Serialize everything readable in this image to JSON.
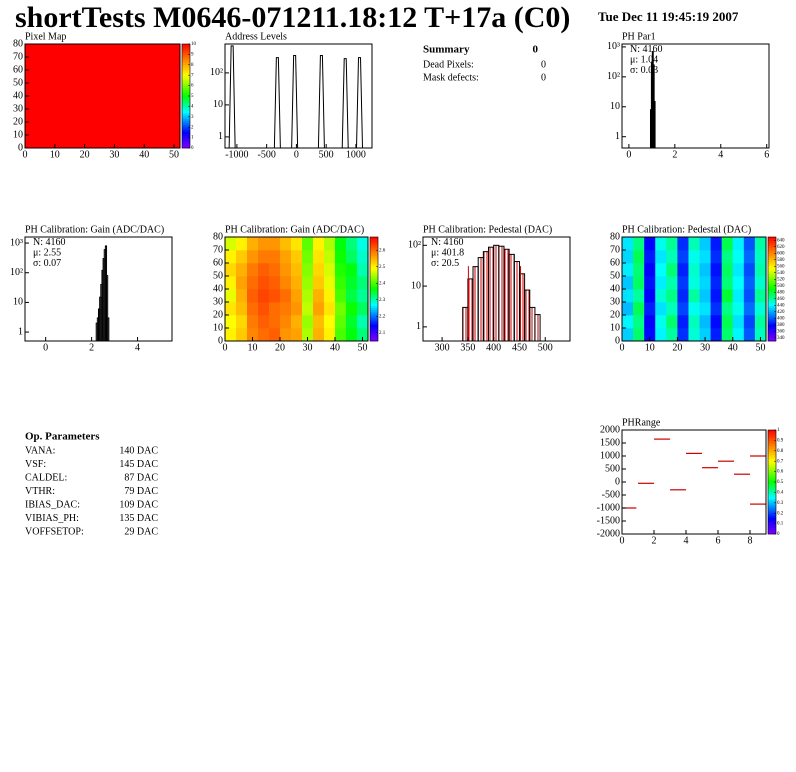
{
  "header": {
    "title": "shortTests M0646-071211.18:12 T+17a (C0)",
    "date": "Tue Dec 11 19:45:19 2007"
  },
  "summary": {
    "title": "Summary",
    "total": 0,
    "rows": [
      {
        "label": "Dead Pixels:",
        "value": 0
      },
      {
        "label": "Mask defects:",
        "value": 0
      }
    ]
  },
  "parameters": {
    "title": "Op. Parameters",
    "rows": [
      {
        "label": "VANA:",
        "value": "140 DAC"
      },
      {
        "label": "VSF:",
        "value": "145 DAC"
      },
      {
        "label": "CALDEL:",
        "value": "87 DAC"
      },
      {
        "label": "VTHR:",
        "value": "79 DAC"
      },
      {
        "label": "IBIAS_DAC:",
        "value": "109 DAC"
      },
      {
        "label": "VIBIAS_PH:",
        "value": "135 DAC"
      },
      {
        "label": "VOFFSETOP:",
        "value": "29 DAC"
      }
    ]
  },
  "chart_data": [
    {
      "type": "heatmap",
      "title": "Pixel Map",
      "xlim": [
        0,
        52
      ],
      "ylim": [
        0,
        80
      ],
      "xticks": [
        0,
        10,
        20,
        30,
        40,
        50
      ],
      "yticks": [
        0,
        10,
        20,
        30,
        40,
        50,
        60,
        70,
        80
      ],
      "z": [
        [
          10
        ]
      ],
      "zlim": [
        0,
        10
      ],
      "zticks": [
        0,
        1,
        2,
        3,
        4,
        5,
        6,
        7,
        8,
        9,
        10
      ]
    },
    {
      "type": "peaks",
      "title": "Address Levels",
      "x": [
        -1080,
        -320,
        -30,
        420,
        820,
        1060
      ],
      "values": [
        700,
        300,
        350,
        350,
        280,
        300
      ],
      "color": "#000000",
      "xlim": [
        -1200,
        1270
      ],
      "ylim": [
        0.45,
        800
      ],
      "log_y": true,
      "xticks": [
        -1000,
        -500,
        0,
        500,
        1000
      ],
      "yticks": [
        1,
        10,
        {
          "value": 100,
          "label": "10²"
        }
      ]
    },
    {
      "type": "histogram",
      "title": "PH Par1",
      "bins": [
        0.94,
        0.98,
        1.02,
        1.06,
        1.1,
        1.14
      ],
      "values": [
        8,
        300,
        700,
        250,
        15
      ],
      "xlim": [
        -0.3,
        6.1
      ],
      "ylim": [
        0.42,
        1250
      ],
      "log_y": true,
      "xticks": [
        0,
        2,
        4,
        6
      ],
      "yticks": [
        1,
        10,
        {
          "value": 100,
          "label": "10²"
        },
        {
          "value": 1000,
          "label": "10³"
        }
      ],
      "stats": [
        {
          "label": "N:",
          "value": 4160
        },
        {
          "label": "μ:",
          "value": 1.04
        },
        {
          "label": "σ:",
          "value": 0.03
        }
      ]
    },
    {
      "type": "histogram",
      "title": "PH Calibration: Gain (ADC/DAC)",
      "bins": [
        2.2,
        2.25,
        2.3,
        2.35,
        2.4,
        2.45,
        2.5,
        2.55,
        2.6,
        2.65,
        2.7,
        2.75
      ],
      "values": [
        2,
        3,
        6,
        15,
        40,
        120,
        300,
        600,
        800,
        80,
        3
      ],
      "xlim": [
        -0.9,
        5.5
      ],
      "ylim": [
        0.5,
        1600
      ],
      "log_y": true,
      "xticks": [
        0,
        2,
        4
      ],
      "yticks": [
        1,
        10,
        {
          "value": 100,
          "label": "10²"
        },
        {
          "value": 1000,
          "label": "10³"
        }
      ],
      "stats": [
        {
          "label": "N:",
          "value": 4160
        },
        {
          "label": "μ:",
          "value": 2.55
        },
        {
          "label": "σ:",
          "value": 0.07
        }
      ]
    },
    {
      "type": "heatmap",
      "title": "PH Calibration: Gain (ADC/DAC)",
      "xlim": [
        0,
        52
      ],
      "ylim": [
        0,
        80
      ],
      "xticks": [
        0,
        10,
        20,
        30,
        40,
        50
      ],
      "yticks": [
        0,
        10,
        20,
        30,
        40,
        50,
        60,
        70,
        80
      ],
      "zlim": [
        2.05,
        2.68
      ],
      "zticks": [
        2.1,
        2.2,
        2.3,
        2.4,
        2.5,
        2.6
      ],
      "z": [
        [
          2.5,
          2.53,
          2.58,
          2.6,
          2.61,
          2.57,
          2.56,
          2.45,
          2.55,
          2.5,
          2.4,
          2.36,
          2.32
        ],
        [
          2.49,
          2.52,
          2.59,
          2.61,
          2.6,
          2.58,
          2.55,
          2.44,
          2.54,
          2.49,
          2.41,
          2.35,
          2.3
        ],
        [
          2.51,
          2.54,
          2.6,
          2.62,
          2.6,
          2.59,
          2.57,
          2.46,
          2.56,
          2.51,
          2.42,
          2.37,
          2.33
        ],
        [
          2.48,
          2.55,
          2.61,
          2.63,
          2.62,
          2.6,
          2.56,
          2.45,
          2.55,
          2.5,
          2.4,
          2.34,
          2.31
        ],
        [
          2.5,
          2.56,
          2.6,
          2.62,
          2.61,
          2.58,
          2.55,
          2.44,
          2.53,
          2.48,
          2.39,
          2.35,
          2.32
        ],
        [
          2.52,
          2.55,
          2.59,
          2.61,
          2.6,
          2.57,
          2.54,
          2.43,
          2.52,
          2.47,
          2.38,
          2.36,
          2.3
        ],
        [
          2.5,
          2.53,
          2.57,
          2.59,
          2.59,
          2.56,
          2.53,
          2.42,
          2.51,
          2.46,
          2.37,
          2.33,
          2.29
        ],
        [
          2.47,
          2.5,
          2.55,
          2.57,
          2.57,
          2.54,
          2.51,
          2.41,
          2.5,
          2.45,
          2.36,
          2.32,
          2.28
        ]
      ]
    },
    {
      "type": "histogram",
      "title": "PH Calibration: Pedestal (DAC)",
      "bins": [
        340,
        350,
        360,
        370,
        380,
        390,
        400,
        410,
        420,
        430,
        440,
        450,
        460,
        470,
        480,
        490
      ],
      "values": [
        3,
        15,
        30,
        50,
        70,
        90,
        100,
        95,
        80,
        60,
        40,
        20,
        8,
        3,
        2
      ],
      "hatch_color": "#cc0000",
      "cuts": [
        351,
        452
      ],
      "xlim": [
        263,
        548
      ],
      "ylim": [
        0.45,
        160
      ],
      "log_y": true,
      "xticks": [
        300,
        350,
        400,
        450,
        500
      ],
      "yticks": [
        1,
        10,
        {
          "value": 100,
          "label": "10²"
        }
      ],
      "stats": [
        {
          "label": "N:",
          "value": 4160
        },
        {
          "label": "μ:",
          "value": 401.8,
          "color": "#cc0000"
        },
        {
          "label": "σ:",
          "value": 20.5,
          "color": "#cc0000"
        }
      ]
    },
    {
      "type": "heatmap",
      "title": "PH Calibration: Pedestal (DAC)",
      "xlim": [
        0,
        52
      ],
      "ylim": [
        0,
        80
      ],
      "xticks": [
        0,
        10,
        20,
        30,
        40,
        50
      ],
      "yticks": [
        0,
        10,
        20,
        30,
        40,
        50,
        60,
        70,
        80
      ],
      "zlim": [
        330,
        650
      ],
      "zticks": [
        340,
        360,
        380,
        400,
        420,
        440,
        460,
        480,
        500,
        520,
        540,
        560,
        580,
        600,
        620,
        640
      ],
      "z": [
        [
          430,
          470,
          380,
          440,
          460,
          390,
          450,
          430,
          385,
          470,
          440,
          400,
          455
        ],
        [
          440,
          465,
          375,
          445,
          470,
          385,
          455,
          425,
          380,
          475,
          435,
          395,
          460
        ],
        [
          425,
          475,
          385,
          435,
          455,
          395,
          445,
          435,
          390,
          465,
          445,
          405,
          450
        ],
        [
          435,
          460,
          378,
          450,
          465,
          388,
          460,
          428,
          383,
          480,
          438,
          398,
          462
        ],
        [
          428,
          472,
          382,
          438,
          458,
          392,
          448,
          432,
          387,
          468,
          442,
          402,
          452
        ],
        [
          438,
          468,
          377,
          442,
          468,
          386,
          452,
          427,
          382,
          472,
          437,
          397,
          458
        ],
        [
          432,
          474,
          384,
          436,
          456,
          394,
          446,
          434,
          389,
          466,
          444,
          404,
          454
        ],
        [
          436,
          466,
          379,
          446,
          462,
          389,
          456,
          429,
          384,
          476,
          439,
          399,
          459
        ]
      ]
    },
    {
      "type": "segments",
      "title": "PHRange",
      "x": [
        0,
        1,
        2,
        3,
        4,
        5,
        6,
        7,
        8,
        8
      ],
      "x_end": [
        0.9,
        2,
        3,
        4,
        5,
        6,
        7,
        8,
        9,
        9
      ],
      "values": [
        -1000,
        -50,
        1650,
        -300,
        1100,
        550,
        800,
        300,
        1000,
        -850
      ],
      "color": "#cc0000",
      "xlim": [
        0,
        9
      ],
      "ylim": [
        -2000,
        2000
      ],
      "xticks": [
        0,
        2,
        4,
        6,
        8
      ],
      "yticks": [
        -2000,
        -1500,
        -1000,
        -500,
        0,
        500,
        1000,
        1500,
        2000
      ],
      "zlim": [
        0,
        1
      ],
      "zticks": [
        0,
        0.1,
        0.2,
        0.3,
        0.4,
        0.5,
        0.6,
        0.7,
        0.8,
        0.9,
        1
      ]
    }
  ]
}
